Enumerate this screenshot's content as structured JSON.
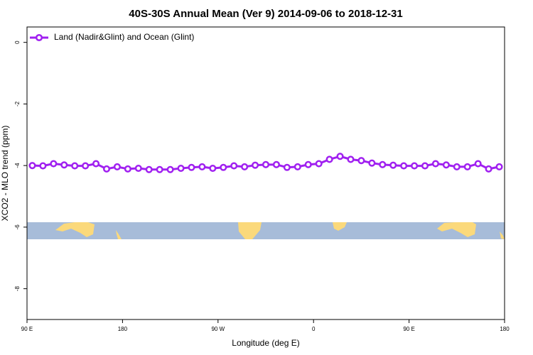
{
  "chart_data": {
    "type": "line",
    "title": "40S-30S Annual Mean (Ver 9)   2014-09-06 to 2018-12-31",
    "xlabel": "Longitude (deg E)",
    "ylabel": "XCO2 - MLO trend (ppm)",
    "legend": "top-left",
    "x": [
      95,
      105,
      115,
      125,
      135,
      145,
      155,
      165,
      175,
      185,
      195,
      205,
      215,
      225,
      235,
      245,
      255,
      265,
      275,
      285,
      295,
      305,
      315,
      325,
      335,
      345,
      355,
      365,
      375,
      385,
      395,
      405,
      415,
      425,
      435,
      445,
      455,
      465,
      475,
      485,
      495,
      505,
      515,
      525,
      535
    ],
    "series": [
      {
        "name": "Land (Nadir&Glint) and Ocean (Glint)",
        "color": "#a020f0",
        "values": [
          -4.0,
          -4.01,
          -3.94,
          -3.98,
          -4.01,
          -4.01,
          -3.94,
          -4.11,
          -4.04,
          -4.11,
          -4.09,
          -4.13,
          -4.13,
          -4.13,
          -4.09,
          -4.06,
          -4.04,
          -4.09,
          -4.06,
          -4.01,
          -4.04,
          -3.99,
          -3.97,
          -3.97,
          -4.06,
          -4.04,
          -3.97,
          -3.94,
          -3.8,
          -3.7,
          -3.8,
          -3.84,
          -3.92,
          -3.97,
          -3.99,
          -4.01,
          -4.01,
          -4.01,
          -3.94,
          -3.98,
          -4.04,
          -4.04,
          -3.94,
          -4.11,
          -4.04
        ]
      }
    ],
    "xlim": [
      90,
      540
    ],
    "xticks": [
      {
        "value": 90,
        "label": "90 E"
      },
      {
        "value": 180,
        "label": "180"
      },
      {
        "value": 270,
        "label": "90 W"
      },
      {
        "value": 360,
        "label": "0"
      },
      {
        "value": 450,
        "label": "90 E"
      },
      {
        "value": 540,
        "label": "180"
      }
    ],
    "ylim": [
      -9,
      0.5
    ],
    "yticks": [
      -8,
      -6,
      -4,
      -2,
      0
    ]
  }
}
